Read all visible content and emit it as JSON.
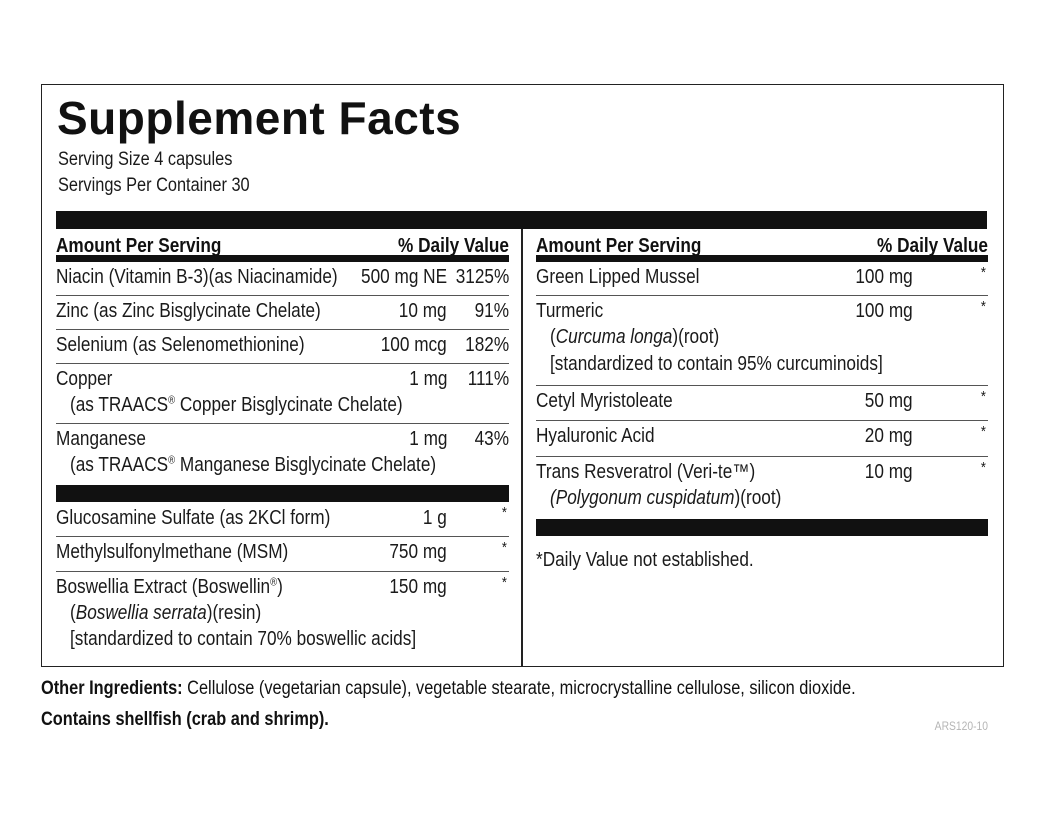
{
  "title": "Supplement Facts",
  "serving_size": "Serving Size 4 capsules",
  "servings_per_container": "Servings Per Container 30",
  "header": {
    "amount_per_serving": "Amount Per Serving",
    "daily_value": "% Daily Value"
  },
  "left_rows": [
    {
      "name": "Niacin (Vitamin B-3)(as Niacinamide)",
      "amount": "500 mg NE",
      "dv": "3125%"
    },
    {
      "name": "Zinc (as Zinc Bisglycinate Chelate)",
      "amount": "10 mg",
      "dv": "91%"
    },
    {
      "name": "Selenium (as Selenomethionine)",
      "amount": "100 mcg",
      "dv": "182%"
    },
    {
      "name": "Copper",
      "sub_prefix": "(as TRAACS",
      "sub_mark": "®",
      "sub_suffix": " Copper Bisglycinate Chelate)",
      "amount": "1 mg",
      "dv": "111%"
    },
    {
      "name": "Manganese",
      "sub_prefix": "(as TRAACS",
      "sub_mark": "®",
      "sub_suffix": " Manganese Bisglycinate Chelate)",
      "amount": "1 mg",
      "dv": "43%"
    },
    {
      "name": "Glucosamine Sulfate (as 2KCl form)",
      "amount": "1 g",
      "dv": "*"
    },
    {
      "name": "Methylsulfonylmethane (MSM)",
      "amount": "750 mg",
      "dv": "*"
    },
    {
      "name_prefix": "Boswellia Extract (Boswellin",
      "name_mark": "®",
      "name_suffix": ")",
      "sub1_italic": "Boswellia serrata",
      "sub1_open": "(",
      "sub1_rest": ")(resin)",
      "sub2": "[standardized to contain 70% boswellic acids]",
      "amount": "150 mg",
      "dv": "*"
    }
  ],
  "right_rows": [
    {
      "name": "Green Lipped Mussel",
      "amount": "100 mg",
      "dv": "*"
    },
    {
      "name": "Turmeric",
      "sub1_open": "(",
      "sub1_italic": "Curcuma longa",
      "sub1_rest": ")(root)",
      "sub2": "[standardized to contain 95% curcuminoids]",
      "amount": "100 mg",
      "dv": "*"
    },
    {
      "name": "Cetyl Myristoleate",
      "amount": "50 mg",
      "dv": "*"
    },
    {
      "name": "Hyaluronic Acid",
      "amount": "20 mg",
      "dv": "*"
    },
    {
      "name": "Trans Resveratrol (Veri-te™)",
      "sub1_italic": "(Polygonum cuspidatum",
      "sub1_rest": ")(root)",
      "amount": "10 mg",
      "dv": "*"
    }
  ],
  "footnote": "*Daily Value not established.",
  "other_ingredients_label": "Other Ingredients:",
  "other_ingredients_text": " Cellulose (vegetarian capsule), vegetable stearate, microcrystalline cellulose, silicon dioxide.",
  "allergen": "Contains shellfish (crab and shrimp).",
  "label_code": "ARS120-10"
}
